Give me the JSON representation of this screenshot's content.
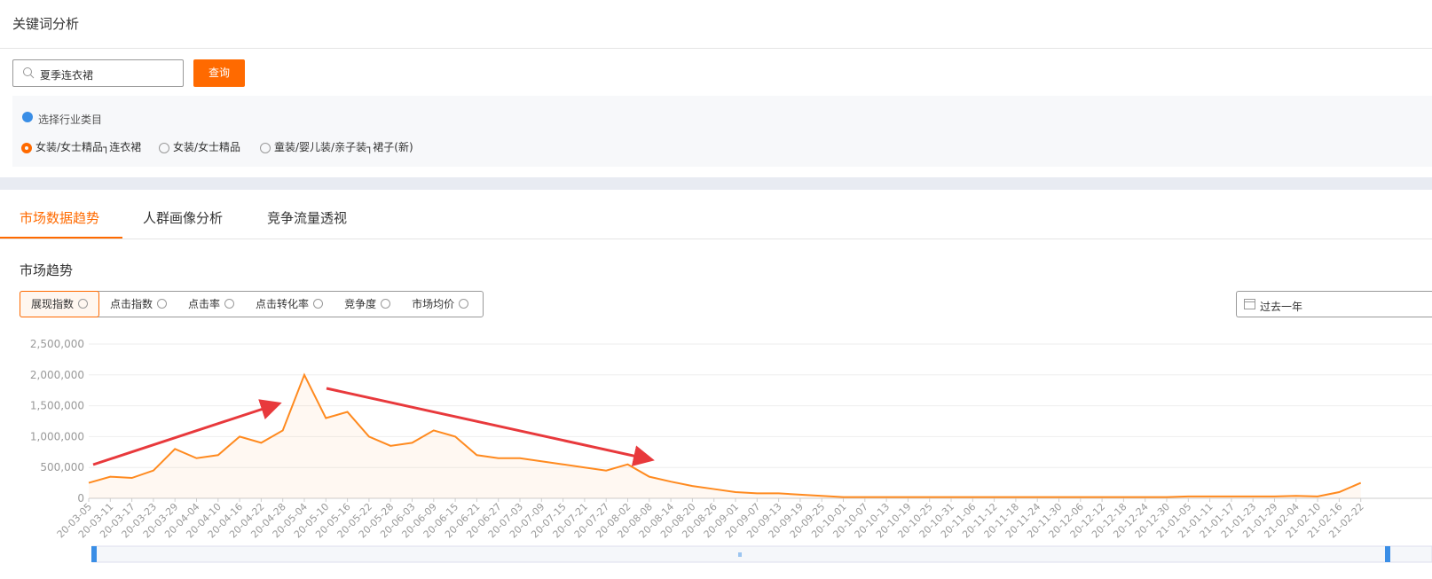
{
  "header": {
    "title": "关键词分析"
  },
  "search": {
    "value": "夏季连衣裙",
    "button": "查询"
  },
  "category": {
    "title": "选择行业类目",
    "options": [
      "女装/女士精品┐连衣裙",
      "女装/女士精品",
      "童装/婴儿装/亲子装┐裙子(新)"
    ]
  },
  "tabs": [
    "市场数据趋势",
    "人群画像分析",
    "竞争流量透视"
  ],
  "section_title": "市场趋势",
  "metrics": [
    "展现指数",
    "点击指数",
    "点击率",
    "点击转化率",
    "竞争度",
    "市场均价"
  ],
  "date_range": "过去一年",
  "chart_data": {
    "type": "line",
    "categories": [
      "20-03-05",
      "20-03-11",
      "20-03-17",
      "20-03-23",
      "20-03-29",
      "20-04-04",
      "20-04-10",
      "20-04-16",
      "20-04-22",
      "20-04-28",
      "20-05-04",
      "20-05-10",
      "20-05-16",
      "20-05-22",
      "20-05-28",
      "20-06-03",
      "20-06-09",
      "20-06-15",
      "20-06-21",
      "20-06-27",
      "20-07-03",
      "20-07-09",
      "20-07-15",
      "20-07-21",
      "20-07-27",
      "20-08-02",
      "20-08-08",
      "20-08-14",
      "20-08-20",
      "20-08-26",
      "20-09-01",
      "20-09-07",
      "20-09-13",
      "20-09-19",
      "20-09-25",
      "20-10-01",
      "20-10-07",
      "20-10-13",
      "20-10-19",
      "20-10-25",
      "20-10-31",
      "20-11-06",
      "20-11-12",
      "20-11-18",
      "20-11-24",
      "20-11-30",
      "20-12-06",
      "20-12-12",
      "20-12-18",
      "20-12-24",
      "20-12-30",
      "21-01-05",
      "21-01-11",
      "21-01-17",
      "21-01-23",
      "21-01-29",
      "21-02-04",
      "21-02-10",
      "21-02-16",
      "21-02-22"
    ],
    "values": [
      250000,
      350000,
      330000,
      450000,
      800000,
      650000,
      700000,
      1000000,
      900000,
      1100000,
      2000000,
      1300000,
      1400000,
      1000000,
      850000,
      900000,
      1100000,
      1000000,
      700000,
      650000,
      650000,
      600000,
      550000,
      500000,
      450000,
      550000,
      350000,
      270000,
      200000,
      150000,
      100000,
      80000,
      80000,
      60000,
      40000,
      20000,
      20000,
      20000,
      20000,
      20000,
      20000,
      20000,
      20000,
      20000,
      20000,
      20000,
      20000,
      20000,
      20000,
      20000,
      20000,
      30000,
      30000,
      30000,
      30000,
      30000,
      40000,
      30000,
      100000,
      250000
    ],
    "color": "#ff8a1f",
    "ylim": [
      0,
      2500000
    ],
    "yticks": [
      0,
      {
        "value": 500000,
        "label": "500,000"
      },
      {
        "value": 1000000,
        "label": "1,000,000"
      },
      {
        "value": 1500000,
        "label": "1,500,000"
      },
      {
        "value": 2000000,
        "label": "2,000,000"
      },
      {
        "value": 2500000,
        "label": "2,500,000"
      }
    ],
    "grid": true
  }
}
